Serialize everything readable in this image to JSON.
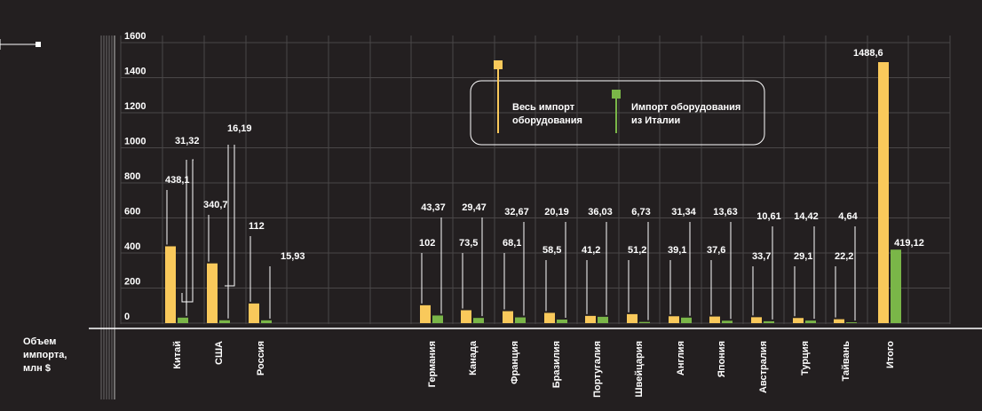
{
  "chart_data": {
    "type": "bar",
    "ylabel": "Объем\nимпорта,\nмлн $",
    "ylim": [
      0,
      1600
    ],
    "yticks": [
      "0",
      "200",
      "400",
      "600",
      "800",
      "1000",
      "1200",
      "1400",
      "1600"
    ],
    "categories": [
      "Китай",
      "США",
      "Россия",
      "Германия",
      "Канада",
      "Франция",
      "Бразилия",
      "Португалия",
      "Швейцария",
      "Англия",
      "Япония",
      "Австралия",
      "Турция",
      "Тайвань",
      "Итого"
    ],
    "series": [
      {
        "name": "Весь импорт оборудования",
        "color": "#f9c95b",
        "values": [
          438.1,
          340.7,
          112,
          102,
          73.5,
          68.1,
          58.5,
          41.2,
          51.2,
          39.1,
          37.6,
          33.7,
          29.1,
          22.2,
          1488.6
        ],
        "labels": [
          "438,1",
          "340,7",
          "112",
          "102",
          "73,5",
          "68,1",
          "58,5",
          "41,2",
          "51,2",
          "39,1",
          "37,6",
          "33,7",
          "29,1",
          "22,2",
          "1488,6"
        ]
      },
      {
        "name": "Импорт оборудования из Италии",
        "color": "#7ab648",
        "values": [
          31.32,
          16.19,
          15.93,
          43.37,
          29.47,
          32.67,
          20.19,
          36.03,
          6.73,
          31.34,
          13.63,
          10.61,
          14.42,
          4.64,
          419.12
        ],
        "labels": [
          "31,32",
          "16,19",
          "15,93",
          "43,37",
          "29,47",
          "32,67",
          "20,19",
          "36,03",
          "6,73",
          "31,34",
          "13,63",
          "10,61",
          "14,42",
          "4,64",
          "419,12"
        ]
      }
    ],
    "legend": {
      "placement": "top-center",
      "items": [
        "Весь импорт\nоборудования",
        "Импорт оборудования\nиз Италии"
      ]
    },
    "grid": true
  },
  "colors": {
    "background": "#231f20",
    "axis": "#ffffff",
    "grid": "#4a4748",
    "text": "#ffffff"
  }
}
